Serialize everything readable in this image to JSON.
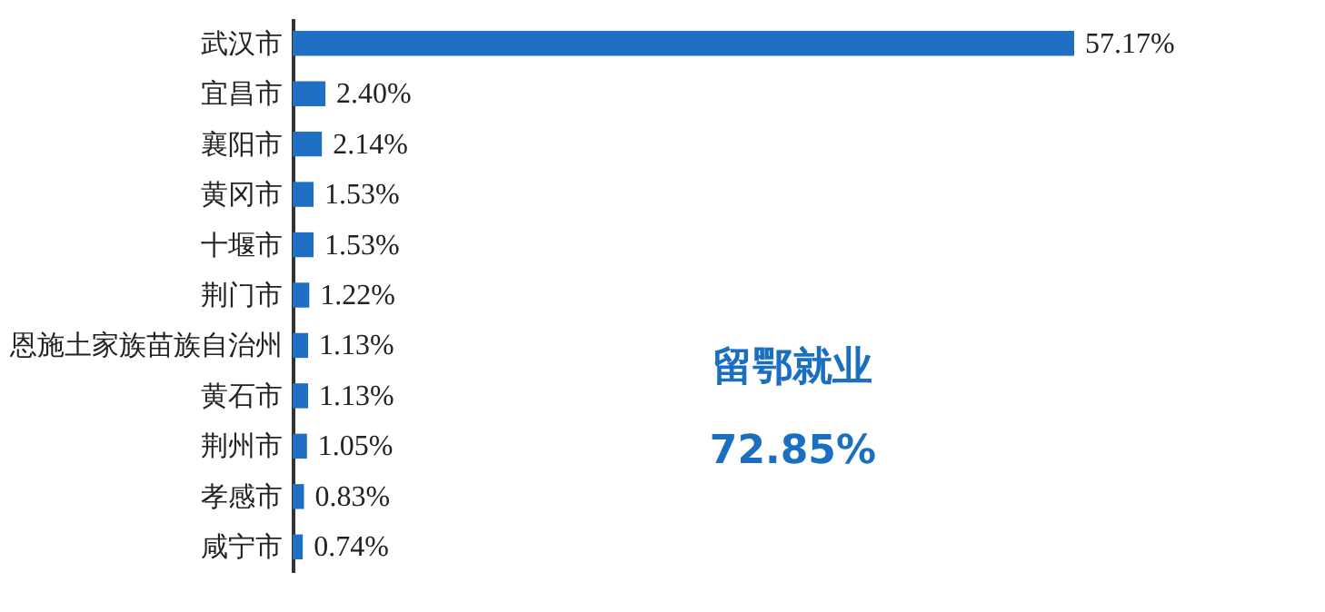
{
  "chart_data": {
    "type": "bar",
    "orientation": "horizontal",
    "categories": [
      "武汉市",
      "宜昌市",
      "襄阳市",
      "黄冈市",
      "十堰市",
      "荆门市",
      "恩施土家族苗族自治州",
      "黄石市",
      "荆州市",
      "孝感市",
      "咸宁市"
    ],
    "values": [
      57.17,
      2.4,
      2.14,
      1.53,
      1.53,
      1.22,
      1.13,
      1.13,
      1.05,
      0.83,
      0.74
    ],
    "value_labels": [
      "57.17%",
      "2.40%",
      "2.14%",
      "1.53%",
      "1.53%",
      "1.22%",
      "1.13%",
      "1.13%",
      "1.05%",
      "0.83%",
      "0.74%"
    ],
    "color": "#1f6fc5",
    "annotations": [
      "留鄂就业",
      "72.85%"
    ]
  }
}
